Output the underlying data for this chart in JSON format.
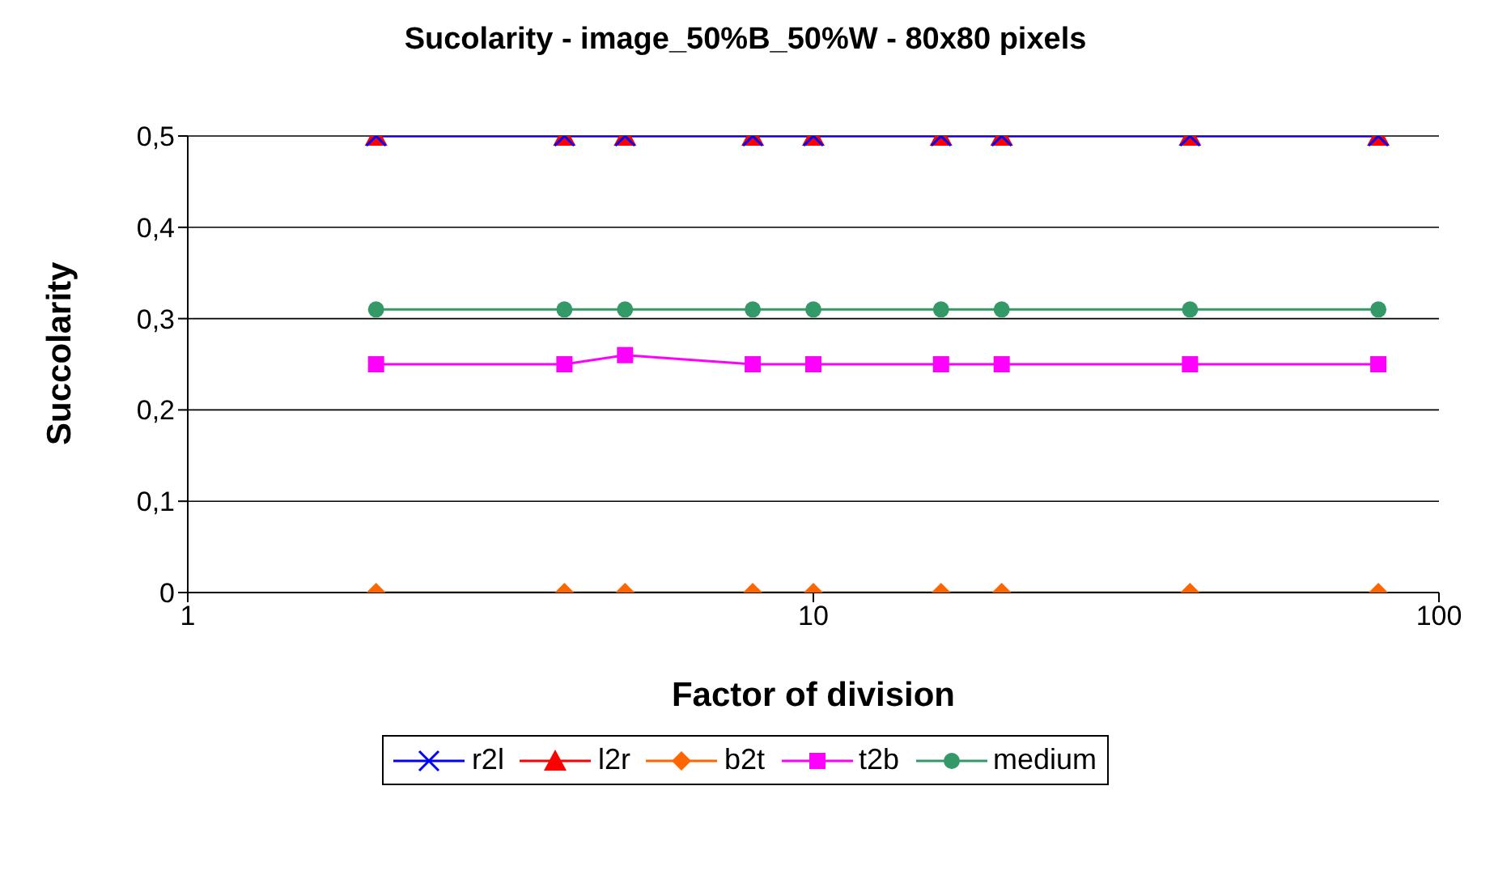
{
  "chart_data": {
    "type": "line",
    "title": "Sucolarity - image_50%B_50%W - 80x80 pixels",
    "xlabel": "Factor of division",
    "ylabel": "Succolarity",
    "x": [
      2,
      4,
      5,
      8,
      10,
      16,
      20,
      40,
      80
    ],
    "series": [
      {
        "name": "r2l",
        "color": "#0000ff",
        "marker": "cross",
        "values": [
          0.5,
          0.5,
          0.5,
          0.5,
          0.5,
          0.5,
          0.5,
          0.5,
          0.5
        ]
      },
      {
        "name": "l2r",
        "color": "#ff0000",
        "marker": "triangle",
        "values": [
          0.5,
          0.5,
          0.5,
          0.5,
          0.5,
          0.5,
          0.5,
          0.5,
          0.5
        ]
      },
      {
        "name": "b2t",
        "color": "#ff6600",
        "marker": "diamond",
        "values": [
          0,
          0,
          0,
          0,
          0,
          0,
          0,
          0,
          0
        ]
      },
      {
        "name": "t2b",
        "color": "#ff00ff",
        "marker": "square",
        "values": [
          0.25,
          0.25,
          0.26,
          0.25,
          0.25,
          0.25,
          0.25,
          0.25,
          0.25
        ]
      },
      {
        "name": "medium",
        "color": "#339966",
        "marker": "circle",
        "values": [
          0.31,
          0.31,
          0.31,
          0.31,
          0.31,
          0.31,
          0.31,
          0.31,
          0.31
        ]
      }
    ],
    "log": "x",
    "xlim": [
      1,
      100
    ],
    "xticks": [
      1,
      10,
      100
    ],
    "ylim": [
      0,
      0.5
    ],
    "yticks": [
      {
        "value": 0,
        "label": "0"
      },
      {
        "value": 0.1,
        "label": "0,1"
      },
      {
        "value": 0.2,
        "label": "0,2"
      },
      {
        "value": 0.3,
        "label": "0,3"
      },
      {
        "value": 0.4,
        "label": "0,4"
      },
      {
        "value": 0.5,
        "label": "0,5"
      }
    ],
    "grid": "y",
    "legend": "bottom",
    "line_style": "solid"
  }
}
